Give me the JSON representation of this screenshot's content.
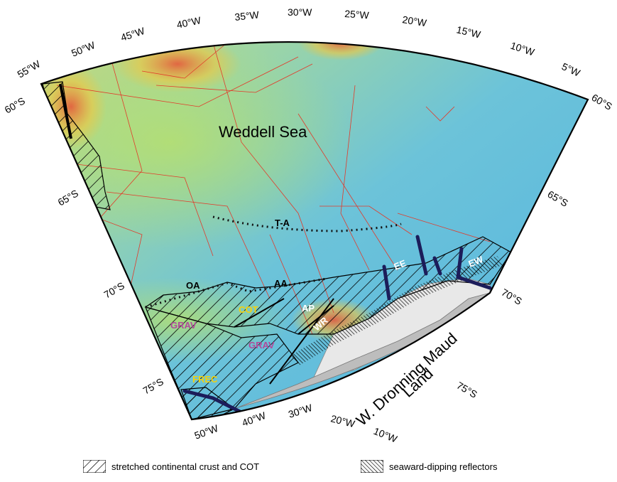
{
  "map": {
    "title": "Weddell Sea",
    "land_label_1": "W. Dronning Maud",
    "land_label_2": "Land",
    "longitude_labels_top": [
      "55°W",
      "50°W",
      "45°W",
      "40°W",
      "35°W",
      "30°W",
      "25°W",
      "20°W",
      "15°W",
      "10°W",
      "5°W"
    ],
    "latitude_labels_left": [
      "60°S",
      "65°S",
      "70°S",
      "75°S"
    ],
    "latitude_labels_right": [
      "60°S",
      "65°S",
      "70°S",
      "75°S"
    ],
    "longitude_labels_bottom": [
      "50°W",
      "40°W",
      "30°W",
      "20°W",
      "10°W"
    ],
    "feature_labels": {
      "ta": "T-A",
      "oa": "OA",
      "aa": "AA",
      "ee": "EE",
      "ew": "EW",
      "cot": "COT",
      "ap": "AP",
      "wr": "WR",
      "grav1": "GRAV",
      "grav2": "GRAV",
      "frec": "FREC"
    },
    "colors": {
      "ocean_blue": "#5ab7e0",
      "ship_tracks": "#e23a2a",
      "land_grey": "#bdbdbd",
      "ice_white": "#e8e8e8",
      "cot_label": "#f5d10a",
      "grav_label": "#b04a9a",
      "frec_label": "#f5d10a",
      "dark_lines": "#1c1d5a"
    }
  },
  "legend": {
    "item1": "stretched continental crust and COT",
    "item2": "seaward-dipping reflectors"
  }
}
